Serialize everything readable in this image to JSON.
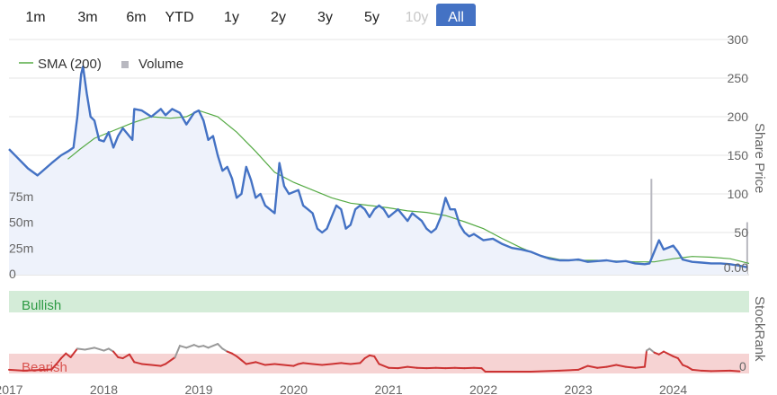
{
  "range_buttons": [
    {
      "label": "1m",
      "state": "normal"
    },
    {
      "label": "3m",
      "state": "normal"
    },
    {
      "label": "6m",
      "state": "normal"
    },
    {
      "label": "YTD",
      "state": "normal"
    },
    {
      "label": "1y",
      "state": "normal"
    },
    {
      "label": "2y",
      "state": "normal"
    },
    {
      "label": "3y",
      "state": "normal"
    },
    {
      "label": "5y",
      "state": "normal"
    },
    {
      "label": "10y",
      "state": "disabled"
    },
    {
      "label": "All",
      "state": "active"
    }
  ],
  "legend": {
    "sma_label": "SMA (200)",
    "volume_label": "Volume"
  },
  "axes": {
    "right_title": "Share Price",
    "right_ticks": [
      "300",
      "250",
      "200",
      "150",
      "100",
      "50",
      "0.00"
    ],
    "left_ticks": [
      "75m",
      "50m",
      "25m",
      "0"
    ],
    "stockrank_title": "StockRank",
    "stockrank_value_label": "0",
    "x_ticks": [
      "2017",
      "2018",
      "2019",
      "2020",
      "2021",
      "2022",
      "2023",
      "2024"
    ]
  },
  "bands": {
    "bullish_label": "Bullish",
    "bearish_label": "Bearish"
  },
  "colors": {
    "price": "#4472c4",
    "sma": "#55aa44",
    "volume": "#b8b8c0",
    "bullish_band": "#d4ecd8",
    "bearish_band": "#f6d3d3",
    "stockrank_low": "#cc3333",
    "stockrank_high": "#999999",
    "accent": "#4472c4"
  },
  "chart_data": {
    "type": "line",
    "x_range": [
      2017.0,
      2024.8
    ],
    "y_range_price": [
      0,
      300
    ],
    "y_range_volume_millions": [
      0,
      107
    ],
    "price": [
      [
        2017.0,
        158
      ],
      [
        2017.08,
        148
      ],
      [
        2017.2,
        133
      ],
      [
        2017.3,
        124
      ],
      [
        2017.45,
        140
      ],
      [
        2017.55,
        150
      ],
      [
        2017.62,
        155
      ],
      [
        2017.68,
        160
      ],
      [
        2017.72,
        200
      ],
      [
        2017.76,
        255
      ],
      [
        2017.78,
        265
      ],
      [
        2017.82,
        230
      ],
      [
        2017.86,
        200
      ],
      [
        2017.9,
        195
      ],
      [
        2017.95,
        170
      ],
      [
        2018.0,
        168
      ],
      [
        2018.05,
        180
      ],
      [
        2018.1,
        160
      ],
      [
        2018.15,
        175
      ],
      [
        2018.2,
        185
      ],
      [
        2018.3,
        170
      ],
      [
        2018.32,
        210
      ],
      [
        2018.4,
        208
      ],
      [
        2018.5,
        200
      ],
      [
        2018.6,
        210
      ],
      [
        2018.65,
        202
      ],
      [
        2018.72,
        210
      ],
      [
        2018.8,
        205
      ],
      [
        2018.87,
        190
      ],
      [
        2018.95,
        205
      ],
      [
        2019.0,
        208
      ],
      [
        2019.05,
        195
      ],
      [
        2019.1,
        170
      ],
      [
        2019.15,
        175
      ],
      [
        2019.2,
        150
      ],
      [
        2019.25,
        130
      ],
      [
        2019.3,
        135
      ],
      [
        2019.35,
        120
      ],
      [
        2019.4,
        95
      ],
      [
        2019.45,
        100
      ],
      [
        2019.5,
        135
      ],
      [
        2019.55,
        118
      ],
      [
        2019.6,
        95
      ],
      [
        2019.65,
        100
      ],
      [
        2019.7,
        85
      ],
      [
        2019.8,
        75
      ],
      [
        2019.85,
        140
      ],
      [
        2019.9,
        110
      ],
      [
        2019.95,
        100
      ],
      [
        2020.05,
        105
      ],
      [
        2020.1,
        85
      ],
      [
        2020.15,
        80
      ],
      [
        2020.2,
        75
      ],
      [
        2020.25,
        55
      ],
      [
        2020.3,
        50
      ],
      [
        2020.35,
        55
      ],
      [
        2020.4,
        70
      ],
      [
        2020.45,
        85
      ],
      [
        2020.5,
        80
      ],
      [
        2020.55,
        55
      ],
      [
        2020.6,
        60
      ],
      [
        2020.65,
        80
      ],
      [
        2020.7,
        85
      ],
      [
        2020.75,
        80
      ],
      [
        2020.8,
        70
      ],
      [
        2020.85,
        80
      ],
      [
        2020.9,
        85
      ],
      [
        2020.95,
        80
      ],
      [
        2021.0,
        70
      ],
      [
        2021.05,
        75
      ],
      [
        2021.1,
        80
      ],
      [
        2021.2,
        65
      ],
      [
        2021.25,
        75
      ],
      [
        2021.3,
        70
      ],
      [
        2021.35,
        65
      ],
      [
        2021.4,
        55
      ],
      [
        2021.45,
        50
      ],
      [
        2021.5,
        55
      ],
      [
        2021.55,
        70
      ],
      [
        2021.6,
        95
      ],
      [
        2021.65,
        80
      ],
      [
        2021.7,
        80
      ],
      [
        2021.75,
        60
      ],
      [
        2021.8,
        50
      ],
      [
        2021.85,
        45
      ],
      [
        2021.9,
        48
      ],
      [
        2022.0,
        40
      ],
      [
        2022.1,
        42
      ],
      [
        2022.2,
        35
      ],
      [
        2022.3,
        30
      ],
      [
        2022.4,
        28
      ],
      [
        2022.5,
        25
      ],
      [
        2022.6,
        20
      ],
      [
        2022.7,
        16
      ],
      [
        2022.8,
        14
      ],
      [
        2022.9,
        14
      ],
      [
        2023.0,
        15
      ],
      [
        2023.1,
        12
      ],
      [
        2023.2,
        13
      ],
      [
        2023.3,
        14
      ],
      [
        2023.4,
        12
      ],
      [
        2023.5,
        13
      ],
      [
        2023.6,
        10
      ],
      [
        2023.7,
        9
      ],
      [
        2023.75,
        10
      ],
      [
        2023.8,
        25
      ],
      [
        2023.85,
        40
      ],
      [
        2023.9,
        28
      ],
      [
        2024.0,
        33
      ],
      [
        2024.05,
        25
      ],
      [
        2024.1,
        15
      ],
      [
        2024.2,
        12
      ],
      [
        2024.3,
        11
      ],
      [
        2024.4,
        10
      ],
      [
        2024.5,
        10
      ],
      [
        2024.6,
        9
      ],
      [
        2024.7,
        7
      ],
      [
        2024.78,
        5
      ]
    ],
    "sma_200": [
      [
        2017.62,
        145
      ],
      [
        2017.75,
        158
      ],
      [
        2017.9,
        172
      ],
      [
        2018.1,
        182
      ],
      [
        2018.3,
        192
      ],
      [
        2018.5,
        200
      ],
      [
        2018.7,
        198
      ],
      [
        2018.87,
        200
      ],
      [
        2019.0,
        208
      ],
      [
        2019.2,
        200
      ],
      [
        2019.4,
        180
      ],
      [
        2019.6,
        155
      ],
      [
        2019.8,
        128
      ],
      [
        2020.0,
        115
      ],
      [
        2020.2,
        105
      ],
      [
        2020.4,
        95
      ],
      [
        2020.6,
        88
      ],
      [
        2020.8,
        85
      ],
      [
        2021.0,
        82
      ],
      [
        2021.2,
        78
      ],
      [
        2021.4,
        76
      ],
      [
        2021.6,
        72
      ],
      [
        2021.8,
        64
      ],
      [
        2022.0,
        55
      ],
      [
        2022.2,
        42
      ],
      [
        2022.4,
        30
      ],
      [
        2022.6,
        20
      ],
      [
        2022.8,
        15
      ],
      [
        2023.0,
        14
      ],
      [
        2023.2,
        14
      ],
      [
        2023.4,
        13
      ],
      [
        2023.6,
        12
      ],
      [
        2023.8,
        12
      ],
      [
        2024.0,
        16
      ],
      [
        2024.2,
        19
      ],
      [
        2024.4,
        18
      ],
      [
        2024.6,
        16
      ],
      [
        2024.8,
        10
      ]
    ],
    "volume_millions": [
      [
        2018.1,
        10
      ],
      [
        2018.6,
        4
      ],
      [
        2018.7,
        5
      ],
      [
        2019.3,
        6
      ],
      [
        2020.3,
        8
      ],
      [
        2021.25,
        9
      ],
      [
        2022.05,
        4
      ],
      [
        2022.2,
        6
      ],
      [
        2022.3,
        3
      ],
      [
        2022.4,
        5
      ],
      [
        2022.5,
        9
      ],
      [
        2022.6,
        6
      ],
      [
        2022.7,
        5
      ],
      [
        2022.8,
        4
      ],
      [
        2022.9,
        6
      ],
      [
        2023.0,
        5
      ],
      [
        2023.1,
        7
      ],
      [
        2023.2,
        6
      ],
      [
        2023.3,
        5
      ],
      [
        2023.4,
        8
      ],
      [
        2023.5,
        6
      ],
      [
        2023.6,
        7
      ],
      [
        2023.72,
        10
      ],
      [
        2023.77,
        92
      ],
      [
        2023.8,
        22
      ],
      [
        2023.85,
        12
      ],
      [
        2023.9,
        10
      ],
      [
        2024.0,
        8
      ],
      [
        2024.1,
        10
      ],
      [
        2024.2,
        9
      ],
      [
        2024.3,
        7
      ],
      [
        2024.4,
        8
      ],
      [
        2024.5,
        6
      ],
      [
        2024.6,
        9
      ],
      [
        2024.7,
        8
      ],
      [
        2024.78,
        50
      ]
    ],
    "stockrank": [
      [
        2017.0,
        10
      ],
      [
        2017.15,
        5
      ],
      [
        2017.3,
        8
      ],
      [
        2017.45,
        12
      ],
      [
        2017.5,
        40
      ],
      [
        2017.55,
        70
      ],
      [
        2017.6,
        95
      ],
      [
        2017.65,
        75
      ],
      [
        2017.72,
        120
      ],
      [
        2017.8,
        115
      ],
      [
        2017.9,
        125
      ],
      [
        2018.0,
        110
      ],
      [
        2018.05,
        120
      ],
      [
        2018.1,
        105
      ],
      [
        2018.15,
        75
      ],
      [
        2018.2,
        70
      ],
      [
        2018.27,
        90
      ],
      [
        2018.32,
        50
      ],
      [
        2018.4,
        40
      ],
      [
        2018.5,
        35
      ],
      [
        2018.6,
        30
      ],
      [
        2018.65,
        40
      ],
      [
        2018.75,
        75
      ],
      [
        2018.8,
        135
      ],
      [
        2018.87,
        125
      ],
      [
        2018.95,
        140
      ],
      [
        2019.0,
        130
      ],
      [
        2019.05,
        135
      ],
      [
        2019.1,
        125
      ],
      [
        2019.2,
        145
      ],
      [
        2019.25,
        120
      ],
      [
        2019.3,
        105
      ],
      [
        2019.35,
        95
      ],
      [
        2019.4,
        80
      ],
      [
        2019.45,
        60
      ],
      [
        2019.5,
        40
      ],
      [
        2019.6,
        50
      ],
      [
        2019.7,
        35
      ],
      [
        2019.8,
        40
      ],
      [
        2020.0,
        30
      ],
      [
        2020.05,
        40
      ],
      [
        2020.1,
        45
      ],
      [
        2020.2,
        40
      ],
      [
        2020.3,
        35
      ],
      [
        2020.4,
        40
      ],
      [
        2020.5,
        45
      ],
      [
        2020.6,
        40
      ],
      [
        2020.7,
        45
      ],
      [
        2020.75,
        70
      ],
      [
        2020.8,
        85
      ],
      [
        2020.85,
        80
      ],
      [
        2020.9,
        40
      ],
      [
        2021.0,
        20
      ],
      [
        2021.1,
        18
      ],
      [
        2021.2,
        25
      ],
      [
        2021.3,
        20
      ],
      [
        2021.4,
        18
      ],
      [
        2021.5,
        20
      ],
      [
        2021.6,
        18
      ],
      [
        2021.7,
        20
      ],
      [
        2021.8,
        18
      ],
      [
        2021.9,
        20
      ],
      [
        2021.98,
        18
      ],
      [
        2022.02,
        0
      ],
      [
        2022.5,
        0
      ],
      [
        2022.8,
        5
      ],
      [
        2023.0,
        10
      ],
      [
        2023.05,
        20
      ],
      [
        2023.1,
        30
      ],
      [
        2023.2,
        20
      ],
      [
        2023.3,
        25
      ],
      [
        2023.4,
        35
      ],
      [
        2023.5,
        25
      ],
      [
        2023.6,
        20
      ],
      [
        2023.7,
        25
      ],
      [
        2023.72,
        110
      ],
      [
        2023.75,
        120
      ],
      [
        2023.8,
        100
      ],
      [
        2023.85,
        90
      ],
      [
        2023.9,
        105
      ],
      [
        2024.0,
        80
      ],
      [
        2024.05,
        70
      ],
      [
        2024.1,
        35
      ],
      [
        2024.15,
        25
      ],
      [
        2024.2,
        10
      ],
      [
        2024.3,
        5
      ],
      [
        2024.4,
        3
      ],
      [
        2024.6,
        5
      ],
      [
        2024.7,
        2
      ]
    ]
  }
}
